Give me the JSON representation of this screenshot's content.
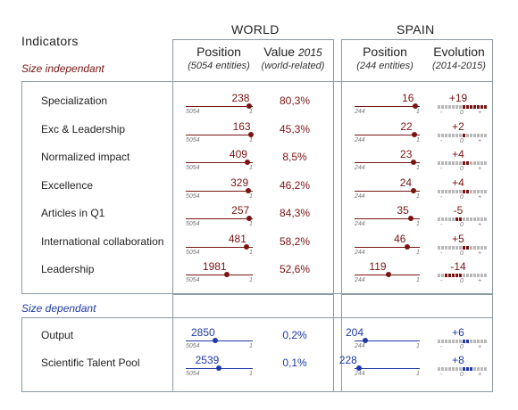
{
  "headers": {
    "indicators": "Indicators",
    "world": "WORLD",
    "spain": "SPAIN",
    "world_position": "Position",
    "world_position_sub": "(5054 entities)",
    "world_value_a": "Value",
    "world_value_b": "2015",
    "world_value_sub": "(world-related)",
    "spain_position": "Position",
    "spain_position_sub": "(244 entities)",
    "spain_evolution": "Evolution",
    "spain_evolution_sub": "(2014-2015)"
  },
  "sections": {
    "independent": "Size independant",
    "dependent": "Size dependant"
  },
  "colors": {
    "independent": "#7a1414",
    "dependent": "#1f3aa8",
    "border": "#8a9aa5"
  },
  "world_total": 5054,
  "spain_total": 244,
  "axis_right": "1",
  "evo_scale": [
    "-",
    "0",
    "+"
  ],
  "independent_rows": [
    {
      "label": "Specialization",
      "world_rank": "238",
      "value": "80,3%",
      "spain_rank": "16",
      "evolution": "+19"
    },
    {
      "label": "Exc & Leadership",
      "world_rank": "163",
      "value": "45,3%",
      "spain_rank": "22",
      "evolution": "+2"
    },
    {
      "label": "Normalized impact",
      "world_rank": "409",
      "value": "8,5%",
      "spain_rank": "23",
      "evolution": "+4"
    },
    {
      "label": "Excellence",
      "world_rank": "329",
      "value": "46,2%",
      "spain_rank": "24",
      "evolution": "+4"
    },
    {
      "label": "Articles in Q1",
      "world_rank": "257",
      "value": "84,3%",
      "spain_rank": "35",
      "evolution": "-5"
    },
    {
      "label": "International collaboration",
      "world_rank": "481",
      "value": "58,2%",
      "spain_rank": "46",
      "evolution": "+5"
    },
    {
      "label": "Leadership",
      "world_rank": "1981",
      "value": "52,6%",
      "spain_rank": "119",
      "evolution": "-14"
    }
  ],
  "dependent_rows": [
    {
      "label": "Output",
      "world_rank": "2850",
      "value": "0,2%",
      "spain_rank": "204",
      "evolution": "+6"
    },
    {
      "label": "Scientific Talent Pool",
      "world_rank": "2539",
      "value": "0,1%",
      "spain_rank": "228",
      "evolution": "+8"
    }
  ]
}
